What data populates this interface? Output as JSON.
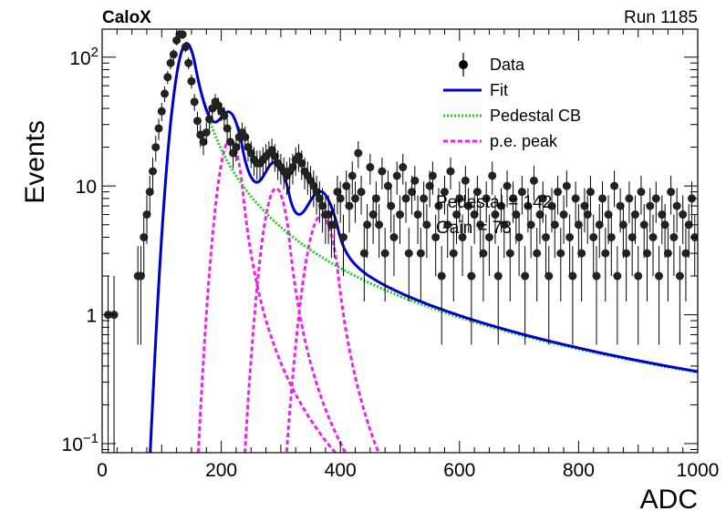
{
  "header": {
    "experiment": "CaloX",
    "run": "Run 1185"
  },
  "annotations": {
    "line1": "Pedestal = 142",
    "line2": "Gain = 73"
  },
  "chart_data": {
    "type": "scatter",
    "xlabel": "ADC",
    "ylabel": "Events",
    "xlim": [
      0,
      1000
    ],
    "ylim": [
      0.085,
      165
    ],
    "yscale": "log",
    "x_ticks": [
      "0",
      "200",
      "400",
      "600",
      "800",
      "1000"
    ],
    "y_ticks": [
      {
        "value": 0.1,
        "base": "10",
        "exp": "−1"
      },
      {
        "value": 1,
        "label": "1"
      },
      {
        "value": 10,
        "label": "10"
      },
      {
        "value": 100,
        "base": "10",
        "exp": "2"
      }
    ],
    "legend_position": "top-right",
    "legend": [
      {
        "label": "Data",
        "style": "marker",
        "color": "#000000"
      },
      {
        "label": "Fit",
        "style": "solid",
        "color": "#0000cc"
      },
      {
        "label": "Pedestal CB",
        "style": "dotted",
        "color": "#22cc22"
      },
      {
        "label": "p.e. peak",
        "style": "dashed",
        "color": "#ee22ee"
      }
    ],
    "data": {
      "x": [
        10,
        20,
        60,
        65,
        70,
        75,
        80,
        85,
        90,
        95,
        100,
        105,
        110,
        115,
        120,
        125,
        130,
        135,
        140,
        145,
        150,
        155,
        160,
        165,
        170,
        175,
        180,
        185,
        190,
        195,
        200,
        205,
        210,
        215,
        220,
        225,
        230,
        235,
        240,
        245,
        250,
        255,
        260,
        265,
        270,
        275,
        280,
        285,
        290,
        295,
        300,
        305,
        310,
        315,
        320,
        325,
        330,
        335,
        340,
        345,
        350,
        355,
        360,
        365,
        370,
        375,
        380,
        385,
        390,
        395,
        400,
        405,
        410,
        415,
        420,
        425,
        430,
        435,
        440,
        445,
        450,
        455,
        460,
        465,
        470,
        475,
        480,
        485,
        490,
        495,
        500,
        505,
        510,
        515,
        520,
        525,
        530,
        535,
        540,
        545,
        550,
        555,
        560,
        565,
        570,
        575,
        580,
        585,
        590,
        595,
        600,
        605,
        610,
        615,
        620,
        625,
        630,
        635,
        640,
        645,
        650,
        655,
        660,
        665,
        670,
        675,
        680,
        685,
        690,
        695,
        700,
        705,
        710,
        715,
        720,
        725,
        730,
        735,
        740,
        745,
        750,
        755,
        760,
        765,
        770,
        775,
        780,
        785,
        790,
        795,
        800,
        805,
        810,
        815,
        820,
        825,
        830,
        835,
        840,
        845,
        850,
        855,
        860,
        865,
        870,
        875,
        880,
        885,
        890,
        895,
        900,
        905,
        910,
        915,
        920,
        925,
        930,
        935,
        940,
        945,
        950,
        955,
        960,
        965,
        970,
        975,
        980,
        985,
        990,
        995
      ],
      "y": [
        1,
        1,
        2,
        2,
        4,
        6,
        9,
        13,
        20,
        28,
        38,
        52,
        70,
        90,
        105,
        135,
        150,
        150,
        120,
        90,
        65,
        45,
        32,
        25,
        22,
        26,
        33,
        40,
        45,
        42,
        38,
        35,
        28,
        22,
        18,
        20,
        24,
        26,
        24,
        20,
        18,
        16,
        15,
        15,
        16,
        17,
        18,
        19,
        17,
        15,
        14,
        13,
        12,
        13,
        14,
        16,
        17,
        15,
        13,
        12,
        11,
        10,
        9,
        8,
        7,
        6,
        6,
        5,
        5,
        9,
        8,
        4,
        10,
        7,
        12,
        8,
        18,
        9,
        3,
        5,
        14,
        6,
        8,
        5,
        13,
        3,
        10,
        7,
        4,
        12,
        6,
        14,
        8,
        3,
        9,
        11,
        6,
        3,
        8,
        5,
        10,
        12,
        4,
        7,
        2,
        9,
        5,
        13,
        3,
        6,
        8,
        4,
        11,
        7,
        2,
        6,
        9,
        5,
        3,
        8,
        4,
        12,
        6,
        2,
        7,
        5,
        10,
        3,
        8,
        6,
        4,
        9,
        2,
        7,
        5,
        11,
        3,
        6,
        8,
        4,
        2,
        7,
        5,
        9,
        3,
        6,
        10,
        4,
        2,
        8,
        5,
        3,
        7,
        6,
        9,
        4,
        2,
        5,
        8,
        3,
        6,
        4,
        10,
        2,
        7,
        5,
        3,
        8,
        4,
        6,
        2,
        9,
        5,
        3,
        7,
        4,
        8,
        2,
        6,
        5,
        3,
        9,
        4,
        7,
        2,
        6,
        3,
        5,
        8,
        4
      ]
    }
  }
}
